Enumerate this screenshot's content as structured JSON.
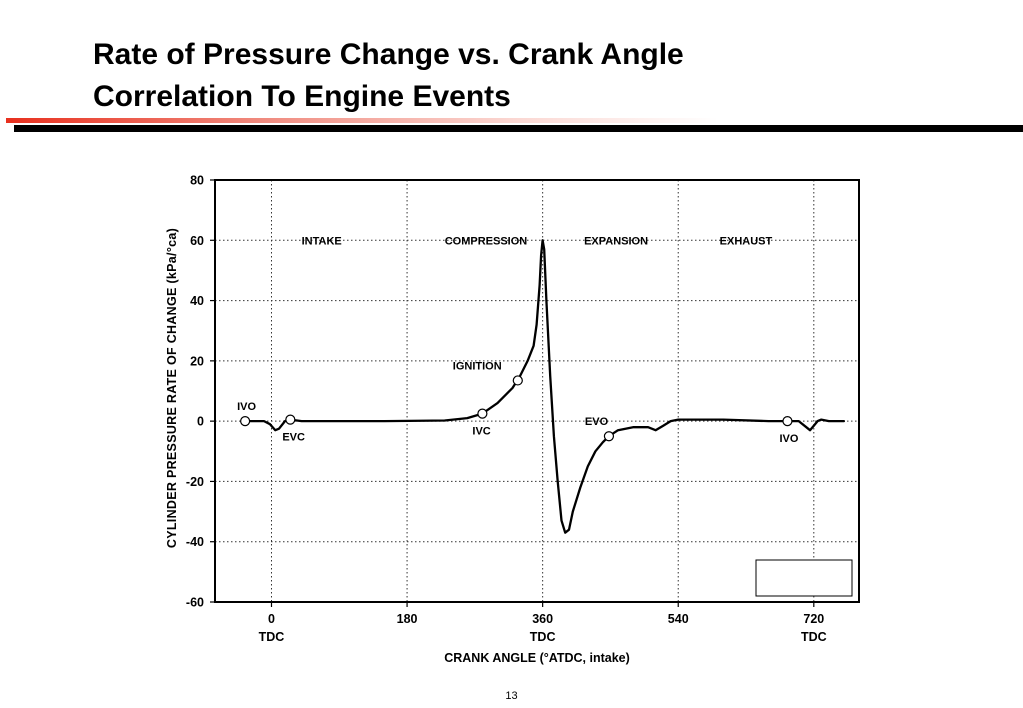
{
  "slide": {
    "title_line1": "Rate of Pressure Change vs. Crank Angle",
    "title_line2": "Correlation To Engine Events",
    "page_number": "13",
    "accent_color": "#e8301e",
    "rule_color": "#000000"
  },
  "chart_data": {
    "type": "line",
    "title": "",
    "xlabel": "CRANK ANGLE (°ATDC, intake)",
    "ylabel": "CYLINDER PRESSURE RATE OF CHANGE (kPa/°ca)",
    "xlim": [
      -75,
      780
    ],
    "ylim": [
      -60,
      80
    ],
    "x_ticks": [
      {
        "value": 0,
        "label": "0",
        "sublabel": "TDC"
      },
      {
        "value": 180,
        "label": "180",
        "sublabel": ""
      },
      {
        "value": 360,
        "label": "360",
        "sublabel": "TDC"
      },
      {
        "value": 540,
        "label": "540",
        "sublabel": ""
      },
      {
        "value": 720,
        "label": "720",
        "sublabel": "TDC"
      }
    ],
    "y_ticks": [
      80,
      60,
      40,
      20,
      0,
      -20,
      -40,
      -60
    ],
    "grid": true,
    "grid_style": "dotted",
    "line_color": "#000000",
    "phases": [
      {
        "label": "INTAKE",
        "x": 40
      },
      {
        "label": "COMPRESSION",
        "x": 230
      },
      {
        "label": "EXPANSION",
        "x": 415
      },
      {
        "label": "EXHAUST",
        "x": 595
      }
    ],
    "phase_label_y": 60,
    "events": [
      {
        "name": "IVO",
        "x": -35,
        "y": 0,
        "label_pos": "above"
      },
      {
        "name": "EVC",
        "x": 25,
        "y": 0.5,
        "label_pos": "below"
      },
      {
        "name": "IVC",
        "x": 280,
        "y": 2.5,
        "label_pos": "below"
      },
      {
        "name": "IGNITION",
        "x": 327,
        "y": 13.5,
        "label_pos": "above"
      },
      {
        "name": "EVO",
        "x": 448,
        "y": -5,
        "label_pos": "above"
      },
      {
        "name": "IVO",
        "x": 685,
        "y": 0,
        "label_pos": "below"
      }
    ],
    "series": [
      {
        "x": [
          -40,
          -20,
          -10,
          -2,
          5,
          10,
          18,
          25,
          40,
          80,
          150,
          230,
          260,
          280,
          300,
          320,
          330,
          340,
          348,
          352,
          356,
          358,
          360,
          362,
          365,
          370,
          375,
          380,
          385,
          390,
          395,
          400,
          410,
          420,
          430,
          440,
          448,
          460,
          480,
          500,
          510,
          520,
          530,
          540,
          560,
          600,
          660,
          685,
          700,
          710,
          715,
          720,
          725,
          730,
          740,
          750,
          760
        ],
        "y": [
          0,
          0,
          0,
          -1,
          -3,
          -2.5,
          0,
          0.5,
          0,
          0,
          0,
          0.2,
          1,
          2.5,
          6,
          11,
          15,
          20,
          25,
          32,
          45,
          55,
          60,
          57,
          40,
          15,
          -5,
          -20,
          -33,
          -37,
          -36,
          -30,
          -22,
          -15,
          -10,
          -7,
          -5,
          -3,
          -2,
          -2,
          -3,
          -1.5,
          0,
          0.5,
          0.5,
          0.5,
          0,
          0,
          0,
          -2,
          -3,
          -1.5,
          0,
          0.5,
          0,
          0,
          0
        ]
      }
    ]
  }
}
